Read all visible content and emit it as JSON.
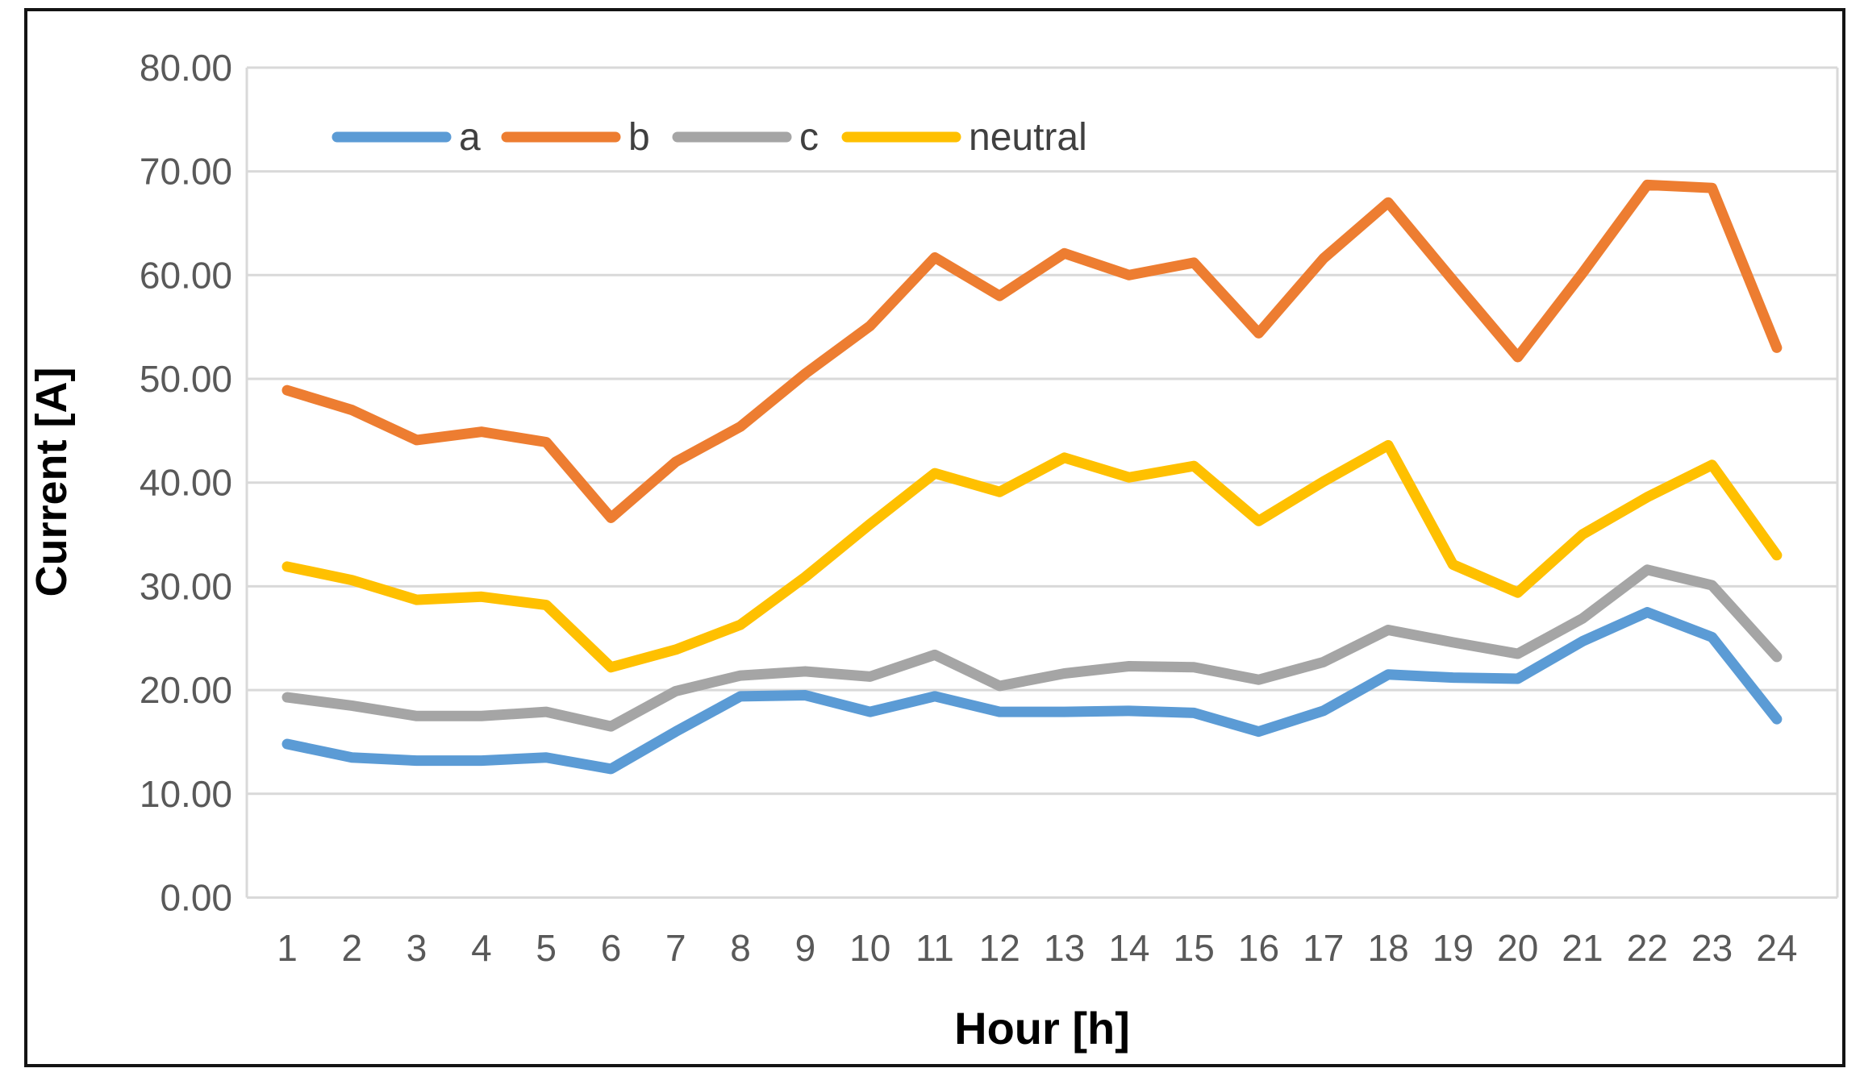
{
  "chart_data": {
    "type": "line",
    "title": "",
    "xlabel": "Hour [h]",
    "ylabel": "Current [A]",
    "x": [
      1,
      2,
      3,
      4,
      5,
      6,
      7,
      8,
      9,
      10,
      11,
      12,
      13,
      14,
      15,
      16,
      17,
      18,
      19,
      20,
      21,
      22,
      23,
      24
    ],
    "x_tick_labels": [
      "1",
      "2",
      "3",
      "4",
      "5",
      "6",
      "7",
      "8",
      "9",
      "10",
      "11",
      "12",
      "13",
      "14",
      "15",
      "16",
      "17",
      "18",
      "19",
      "20",
      "21",
      "22",
      "23",
      "24"
    ],
    "ylim": [
      0,
      80
    ],
    "y_tick_step": 10,
    "y_tick_labels": [
      "0.00",
      "10.00",
      "20.00",
      "30.00",
      "40.00",
      "50.00",
      "60.00",
      "70.00",
      "80.00"
    ],
    "grid": "horizontal",
    "legend_position": "top",
    "series": [
      {
        "name": "a",
        "color": "#5B9BD5",
        "values": [
          14.8,
          13.5,
          13.2,
          13.2,
          13.5,
          12.4,
          16.0,
          19.4,
          19.5,
          17.9,
          19.4,
          17.9,
          17.9,
          18.0,
          17.8,
          16.0,
          18.0,
          21.5,
          21.2,
          21.1,
          24.7,
          27.5,
          25.1,
          17.2
        ]
      },
      {
        "name": "b",
        "color": "#ED7D31",
        "values": [
          48.9,
          47.0,
          44.1,
          44.9,
          43.9,
          36.6,
          42.0,
          45.4,
          50.5,
          55.1,
          61.7,
          58.0,
          62.1,
          60.0,
          61.2,
          54.4,
          61.6,
          67.0,
          59.5,
          52.1,
          60.2,
          68.7,
          68.4,
          53.0
        ]
      },
      {
        "name": "c",
        "color": "#A5A5A5",
        "values": [
          19.3,
          18.5,
          17.5,
          17.5,
          17.9,
          16.5,
          19.9,
          21.4,
          21.8,
          21.3,
          23.4,
          20.4,
          21.6,
          22.3,
          22.2,
          21.0,
          22.7,
          25.8,
          24.6,
          23.5,
          26.9,
          31.6,
          30.1,
          23.2
        ]
      },
      {
        "name": "neutral",
        "color": "#FFC000",
        "values": [
          31.9,
          30.6,
          28.7,
          29.0,
          28.2,
          22.2,
          23.9,
          26.3,
          30.9,
          36.0,
          40.9,
          39.1,
          42.4,
          40.5,
          41.6,
          36.3,
          40.1,
          43.6,
          32.1,
          29.4,
          35.0,
          38.6,
          41.7,
          33.0
        ]
      }
    ],
    "legend": {
      "labels": [
        "a",
        "b",
        "c",
        "neutral"
      ]
    }
  },
  "style_colors": {
    "gridline": "#D9D9D9",
    "tick_text": "#595959",
    "axis_title_text": "#262626",
    "legend_text": "#404040",
    "frame_border": "#141414"
  }
}
